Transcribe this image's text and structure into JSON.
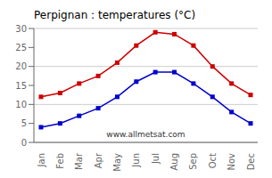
{
  "chart_data": {
    "type": "line",
    "title": "Perpignan : temperatures (°C)",
    "categories": [
      "Jan",
      "Feb",
      "Mar",
      "Apr",
      "May",
      "Jun",
      "Jul",
      "Aug",
      "Sep",
      "Oct",
      "Nov",
      "Dec"
    ],
    "series": [
      {
        "color": "#cc0000",
        "marker": "square",
        "values": [
          12,
          13,
          15.5,
          17.5,
          21,
          25.5,
          29,
          28.5,
          25.5,
          20,
          15.5,
          12.5
        ]
      },
      {
        "color": "#0000cc",
        "marker": "square",
        "values": [
          4,
          5,
          7,
          9,
          12,
          16,
          18.5,
          18.5,
          15.5,
          12,
          8,
          5
        ]
      }
    ],
    "ylim": [
      0,
      30
    ],
    "yticks": [
      0,
      5,
      10,
      15,
      20,
      25,
      30
    ],
    "grid": true,
    "annotations": [
      "www.allmetsat.com"
    ]
  }
}
